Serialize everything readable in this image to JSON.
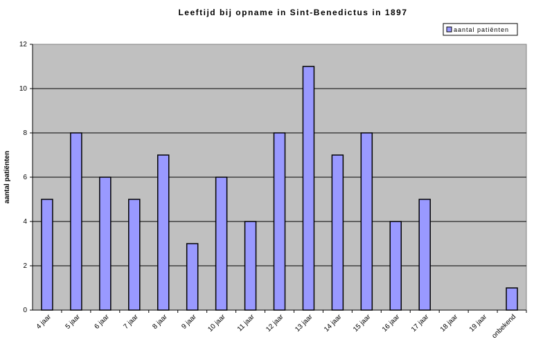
{
  "chart_data": {
    "type": "bar",
    "title": "Leeftijd bij opname in Sint-Benedictus in 1897",
    "xlabel": "",
    "ylabel": "aantal patiënten",
    "categories": [
      "4 jaar",
      "5 jaar",
      "6 jaar",
      "7 jaar",
      "8 jaar",
      "9 jaar",
      "10 jaar",
      "11 jaar",
      "12 jaar",
      "13 jaar",
      "14 jaar",
      "15 jaar",
      "16 jaar",
      "17 jaar",
      "18 jaar",
      "19 jaar",
      "onbekend"
    ],
    "series": [
      {
        "name": "aantal patiënten",
        "values": [
          5,
          8,
          6,
          5,
          7,
          3,
          6,
          4,
          8,
          11,
          7,
          8,
          4,
          5,
          0,
          0,
          1
        ],
        "color": "#9999ff"
      }
    ],
    "ylim": [
      0,
      12
    ],
    "yticks": [
      0,
      2,
      4,
      6,
      8,
      10,
      12
    ],
    "grid": true,
    "legend": "top-right",
    "plot_background": "#c0c0c0"
  }
}
